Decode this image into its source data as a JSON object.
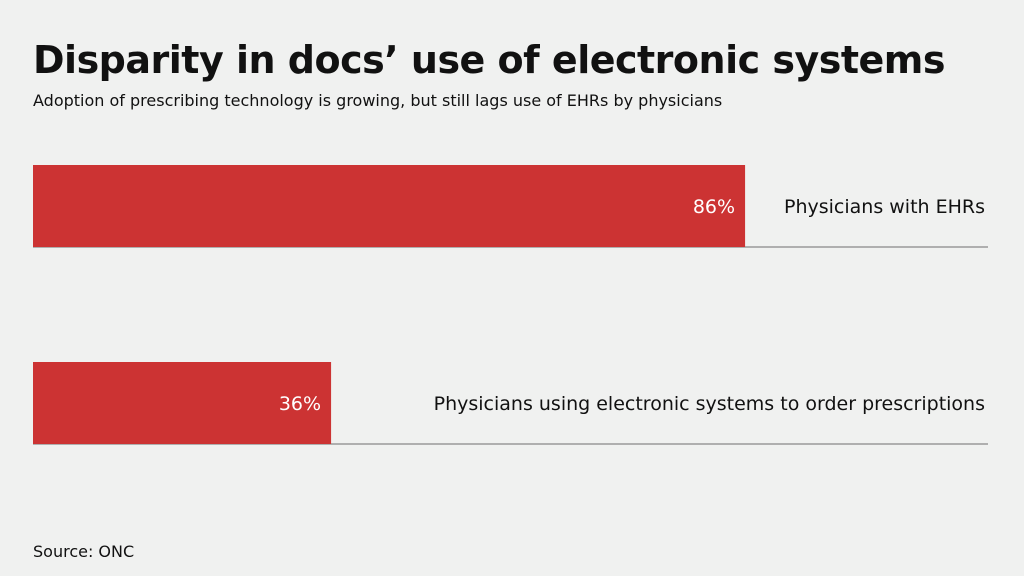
{
  "chart_data": {
    "type": "bar",
    "orientation": "horizontal",
    "title": "Disparity in docs’ use of electronic systems",
    "subtitle": "Adoption of prescribing technology is growing, but still lags use of EHRs by physicians",
    "categories": [
      "Physicians with EHRs",
      "Physicians using electronic systems to order prescriptions"
    ],
    "values": [
      86,
      36
    ],
    "value_labels": [
      "86%",
      "36%"
    ],
    "xlim": [
      0,
      100
    ],
    "grid": false,
    "legend": "none",
    "bar_color": "#cc3333",
    "source": "Source: ONC"
  }
}
